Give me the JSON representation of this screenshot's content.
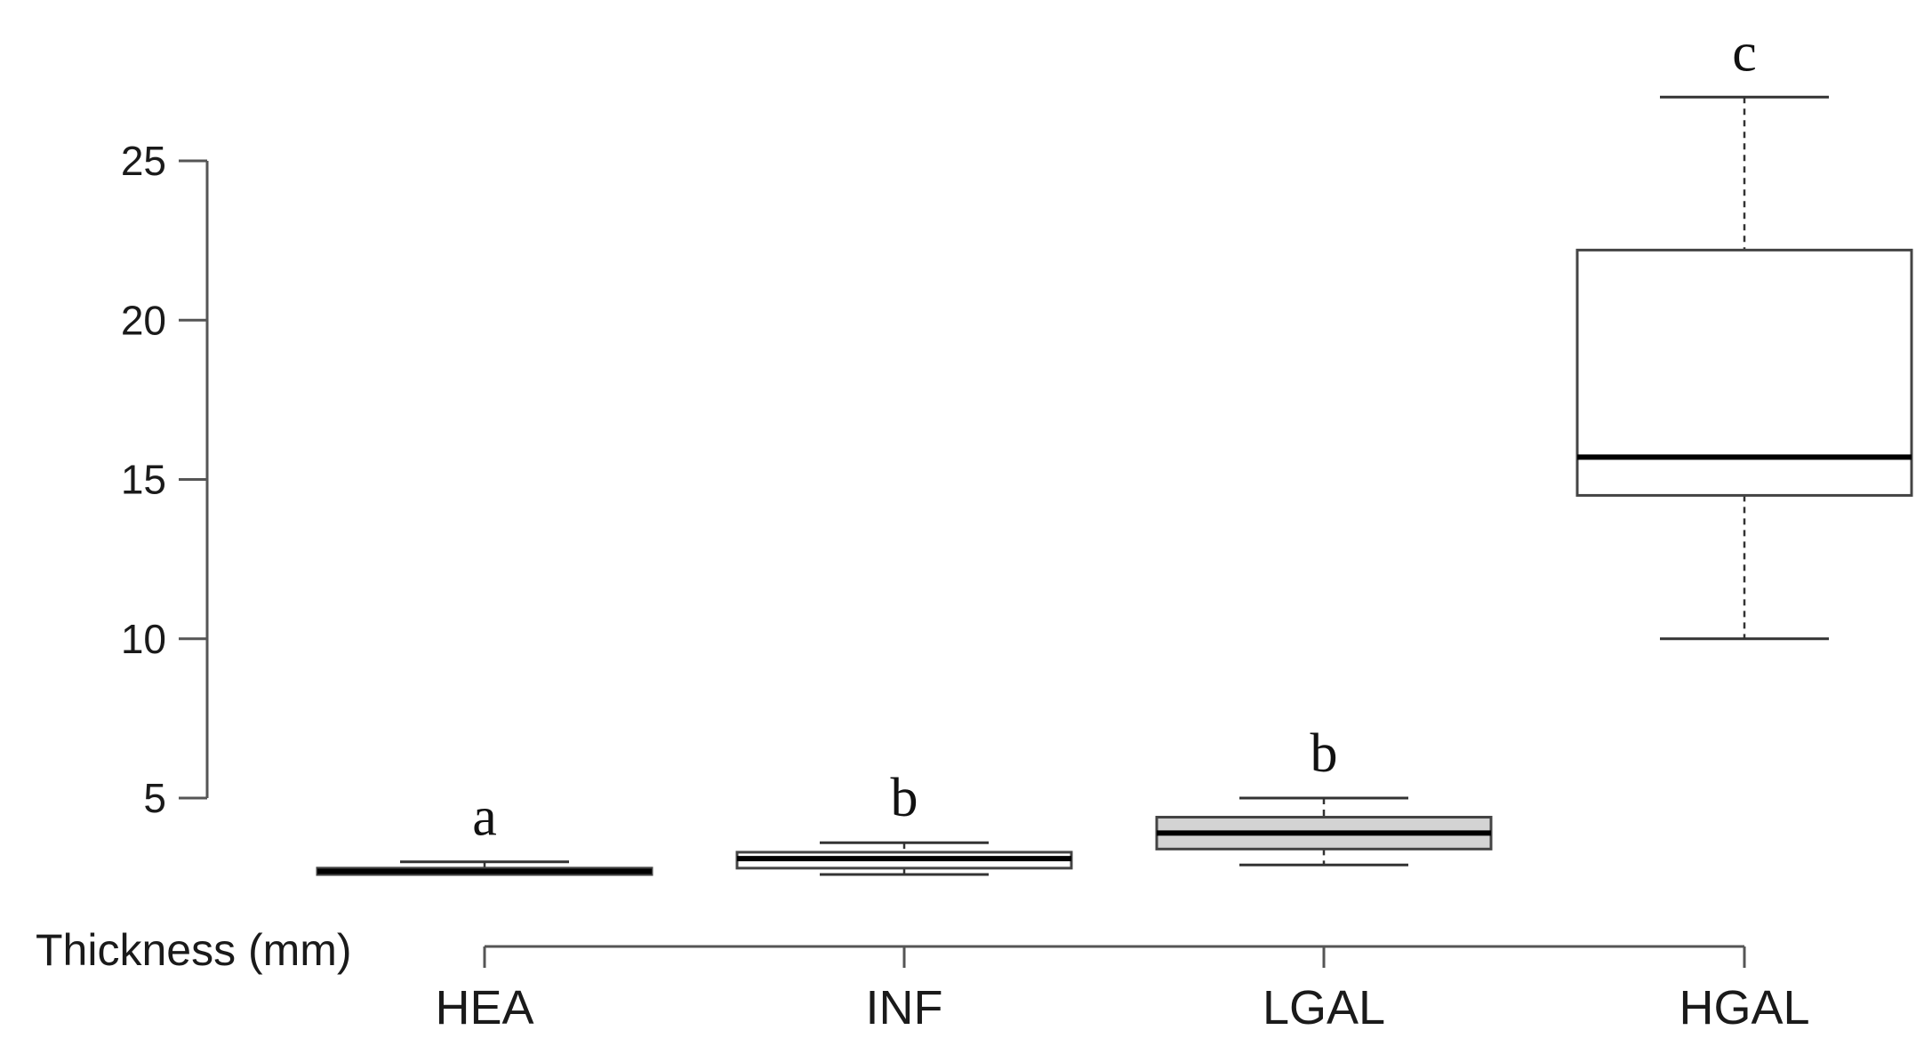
{
  "chart_data": {
    "type": "boxplot",
    "title": "",
    "xlabel": "",
    "ylabel": "Thickness (mm)",
    "ylim": [
      1.5,
      29
    ],
    "yticks": [
      5,
      10,
      15,
      20,
      25
    ],
    "grid": false,
    "categories": [
      "HEA",
      "INF",
      "LGAL",
      "HGAL"
    ],
    "boxes": [
      {
        "category": "HEA",
        "whisker_low": 2.6,
        "q1": 2.6,
        "median": 2.7,
        "q3": 2.8,
        "whisker_high": 3.0,
        "significance": "a",
        "fill": "#c8c8c8"
      },
      {
        "category": "INF",
        "whisker_low": 2.6,
        "q1": 2.8,
        "median": 3.1,
        "q3": 3.3,
        "whisker_high": 3.6,
        "significance": "b",
        "fill": "#ffffff"
      },
      {
        "category": "LGAL",
        "whisker_low": 2.9,
        "q1": 3.4,
        "median": 3.9,
        "q3": 4.4,
        "whisker_high": 5.0,
        "significance": "b",
        "fill": "#d3d3d3"
      },
      {
        "category": "HGAL",
        "whisker_low": 10.0,
        "q1": 14.5,
        "median": 15.7,
        "q3": 22.2,
        "whisker_high": 27.0,
        "significance": "c",
        "fill": "#ffffff"
      }
    ]
  }
}
